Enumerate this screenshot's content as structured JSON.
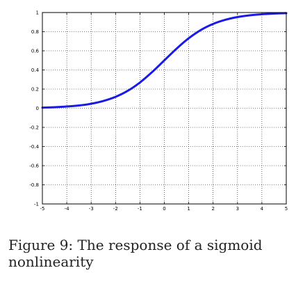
{
  "caption": "Figure 9: The response of a sigmoid nonlinearity",
  "chart_data": {
    "type": "line",
    "title": "",
    "xlabel": "",
    "ylabel": "",
    "xlim": [
      -5,
      5
    ],
    "ylim": [
      -1,
      1
    ],
    "grid": true,
    "grid_style": "dotted",
    "x_ticks": [
      -5,
      -4,
      -3,
      -2,
      -1,
      0,
      1,
      2,
      3,
      4,
      5
    ],
    "x_tick_labels": [
      "-5",
      "-4",
      "-3",
      "-2",
      "-1",
      "0",
      "1",
      "2",
      "3",
      "4",
      "5"
    ],
    "y_ticks": [
      -1,
      -0.8,
      -0.6,
      -0.4,
      -0.2,
      0,
      0.2,
      0.4,
      0.6,
      0.8,
      1
    ],
    "y_tick_labels": [
      "-1",
      "-0.8",
      "-0.6",
      "-0.4",
      "-0.2",
      "0",
      "0.2",
      "0.4",
      "0.6",
      "0.8",
      "1"
    ],
    "series": [
      {
        "color": "#1a1ae6",
        "x": [
          -5,
          -4.5,
          -4,
          -3.5,
          -3,
          -2.5,
          -2,
          -1.5,
          -1,
          -0.5,
          0,
          0.5,
          1,
          1.5,
          2,
          2.5,
          3,
          3.5,
          4,
          4.5,
          5
        ],
        "y": [
          0.0067,
          0.011,
          0.018,
          0.029,
          0.047,
          0.076,
          0.119,
          0.182,
          0.269,
          0.378,
          0.5,
          0.622,
          0.731,
          0.818,
          0.881,
          0.924,
          0.953,
          0.971,
          0.982,
          0.989,
          0.9933
        ]
      }
    ]
  }
}
